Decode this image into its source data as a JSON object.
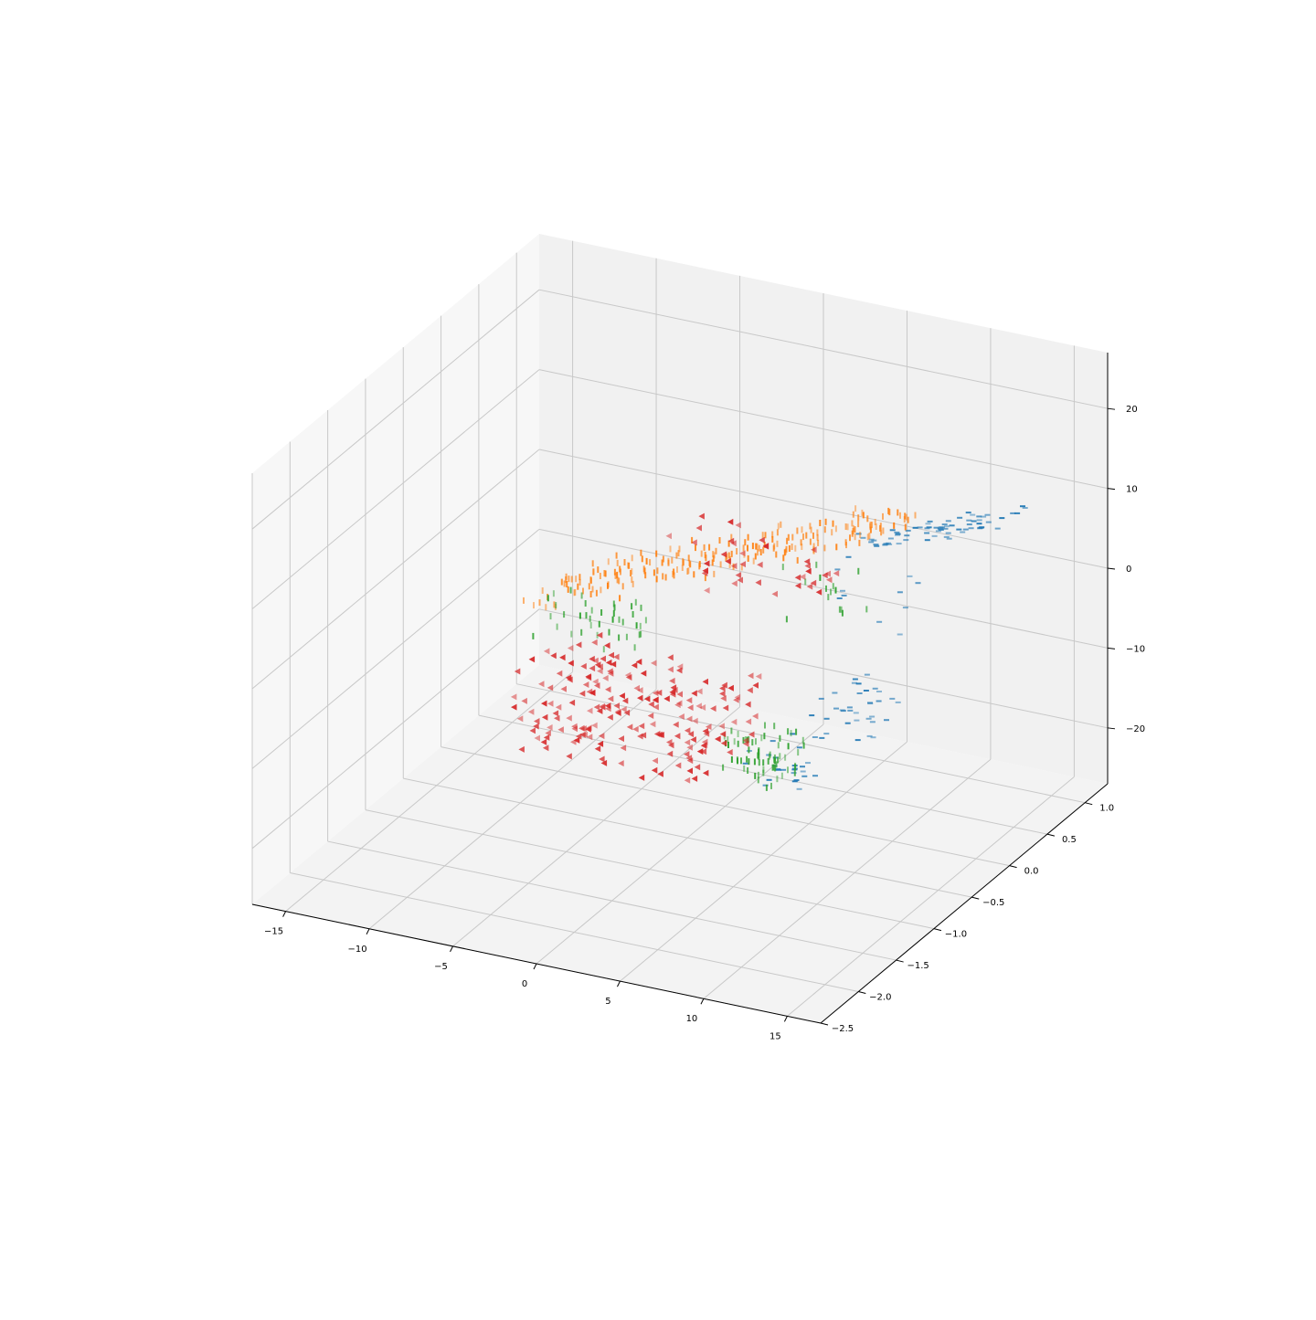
{
  "chart_data": {
    "type": "scatter",
    "projection": "3d",
    "title": "",
    "xlabel": "",
    "ylabel": "",
    "zlabel": "",
    "grid": true,
    "legend": "none",
    "xlim": [
      -17,
      17
    ],
    "ylim": [
      -2.5,
      1.3
    ],
    "zlim": [
      -27,
      27
    ],
    "x_ticks": [
      "−15",
      "−10",
      "−5",
      "0",
      "5",
      "10",
      "15"
    ],
    "y_ticks": [
      "−2.5",
      "−2.0",
      "−1.5",
      "−1.0",
      "−0.5",
      "0.0",
      "0.5",
      "1.0"
    ],
    "z_ticks": [
      "−20",
      "−10",
      "0",
      "10",
      "20"
    ],
    "colors": {
      "pane_back": "#f1f1f1",
      "pane_side": "#f7f7f7",
      "pane_floor": "#f3f3f3",
      "grid": "#c8c8c8"
    },
    "series": [
      {
        "color": "#1f77b4",
        "marker": "underscore",
        "bands": [
          {
            "x": [
              4,
              14
            ],
            "y": [
              0.55,
              0.95
            ],
            "z": [
              1,
              10
            ],
            "n": 70
          },
          {
            "x": [
              6,
              10
            ],
            "y": [
              -0.3,
              0.3
            ],
            "z": [
              -14,
              -8
            ],
            "n": 35
          },
          {
            "x": [
              4,
              7
            ],
            "y": [
              -0.7,
              -0.3
            ],
            "z": [
              -18,
              -13
            ],
            "n": 25
          },
          {
            "x": [
              4,
              9
            ],
            "y": [
              0.1,
              0.7
            ],
            "z": [
              -6,
              2
            ],
            "n": 10
          }
        ]
      },
      {
        "color": "#ff7f0e",
        "marker": "vline",
        "bands": [
          {
            "x": [
              -14,
              7
            ],
            "y": [
              0.5,
              1.0
            ],
            "z": [
              -12,
              6
            ],
            "n": 230
          }
        ]
      },
      {
        "color": "#2ca02c",
        "marker": "vline",
        "bands": [
          {
            "x": [
              2,
              6
            ],
            "y": [
              -0.6,
              -0.2
            ],
            "z": [
              -18,
              -13
            ],
            "n": 70
          },
          {
            "x": [
              -14,
              -8
            ],
            "y": [
              0.4,
              0.9
            ],
            "z": [
              -16,
              -11
            ],
            "n": 40
          },
          {
            "x": [
              0,
              6
            ],
            "y": [
              0.2,
              0.7
            ],
            "z": [
              -5,
              0
            ],
            "n": 15
          }
        ]
      },
      {
        "color": "#d62728",
        "marker": "triangle-left",
        "bands": [
          {
            "x": [
              -10,
              2
            ],
            "y": [
              -0.8,
              0.1
            ],
            "z": [
              -19,
              -9
            ],
            "n": 210
          },
          {
            "x": [
              -6,
              3
            ],
            "y": [
              0.4,
              0.9
            ],
            "z": [
              -5,
              1
            ],
            "n": 40
          }
        ]
      }
    ]
  }
}
